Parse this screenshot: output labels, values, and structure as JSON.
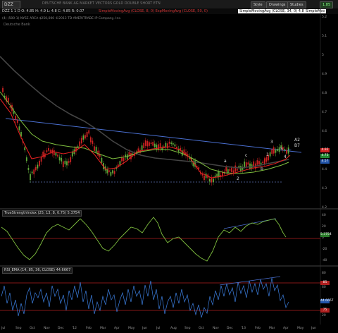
{
  "header": {
    "symbol": "DZZ",
    "description": "DEUTSCHE BANK AG MARKET VECTORS GOLD DOUBLE SHORT ETN",
    "right_value": "1.85",
    "buttons": {
      "style": "Style",
      "drawings": "Drawings",
      "studies": "Studies"
    }
  },
  "price_panel": {
    "ohlc": "DZZ 1 1 D   O: 4.85  H: 4.9  L: 4.8  C: 4.85  R: 0.07",
    "moving_avgs": "SimpleMovingAvg (CLOSE, 8, 0)  ExpMovingAvg (CLOSE, 50, 0)",
    "sma_header": "SimpleMovingAvg (CLOSE, 34, 0)  4.84",
    "sma_header_right": "SimpleMov",
    "company": "(4) (500-1) NYSE ARCA  $250,000  ©2013 TD AMERITRADE IP Company, Inc.",
    "issuer": "Deutsche Bank",
    "yaxis": [
      "5.2",
      "5.1",
      "5",
      "4.9",
      "4.8",
      "4.7",
      "4.6",
      "4.5",
      "4.4",
      "4.3",
      "4.2"
    ],
    "price_tags": [
      {
        "value": "4.92",
        "color": "#cc2222"
      },
      {
        "value": "4.73",
        "color": "#228833"
      },
      {
        "value": "4.57",
        "color": "#2255aa"
      }
    ],
    "wave_labels": {
      "a": "a",
      "b": "b",
      "c": "c",
      "one": "1",
      "two": "2",
      "three": "3",
      "four": "4",
      "five": "5",
      "A2": "A2",
      "B7": "B7"
    }
  },
  "trend_panel": {
    "title": "TrueStrengthIndex (25, 13, 8, 0.75)  5.3754",
    "tag": "5.3754",
    "yaxis": [
      "40",
      "20",
      "0",
      "-20",
      "-40"
    ]
  },
  "rsi_panel": {
    "title": "RSI_EMA (14, 85, 36, CLOSE)  44.6667",
    "tag_value": "44.6667",
    "tags": [
      "85",
      "75"
    ],
    "yaxis": [
      "80",
      "60",
      "40",
      "20"
    ]
  },
  "xaxis": [
    "Jul",
    "Sep",
    "Oct",
    "Nov",
    "Dec",
    "'12",
    "Feb",
    "Mar",
    "Apr",
    "May",
    "Jun",
    "Jul",
    "Aug",
    "Sep",
    "Oct",
    "Nov",
    "Dec",
    "'13",
    "Feb",
    "Mar",
    "Apr",
    "May",
    "Jun"
  ],
  "colors": {
    "price_up": "#5faa3a",
    "price_down": "#cc2222",
    "sma_red": "#e02020",
    "ema_green": "#7fbf3f",
    "sma_dark": "#444444",
    "trend_blue": "#4a6fd0",
    "osc": "#7fbf3f",
    "rsi": "#3c7fe0",
    "ref_line": "#b02020"
  }
}
